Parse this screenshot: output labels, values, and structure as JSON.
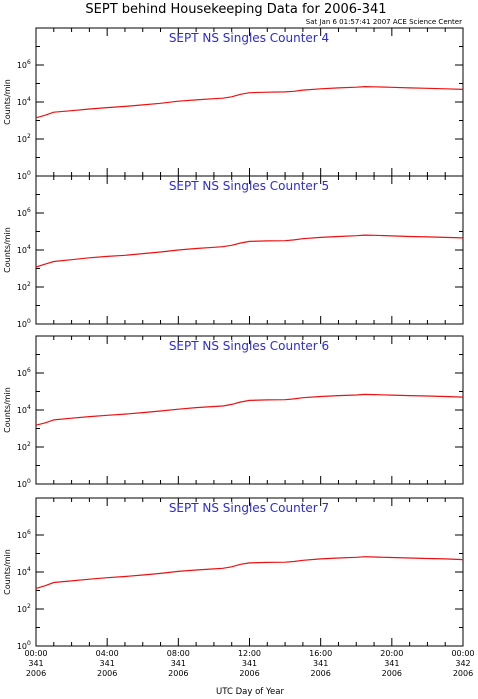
{
  "figure": {
    "title": "SEPT behind Housekeeping Data for 2006-341",
    "timestamp": "Sat Jan  6 01:57:41 2007 ACE Science Center",
    "xlabel": "UTC Day of Year",
    "colors": {
      "line": "#ee1111",
      "panel_title": "#2a2adf",
      "frame": "#000000"
    }
  },
  "chart_data": [
    {
      "type": "line",
      "title": "SEPT NS Singles Counter 4",
      "ylabel": "Counts/min",
      "yscale": "log",
      "ylim": [
        1,
        100000000
      ],
      "y_ticks": [
        {
          "base": "10",
          "exp": "0"
        },
        {
          "base": "10",
          "exp": "2"
        },
        {
          "base": "10",
          "exp": "4"
        },
        {
          "base": "10",
          "exp": "6"
        }
      ],
      "xlim": [
        0,
        24
      ],
      "x_ticks": [
        [
          "00:00",
          "341",
          "2006"
        ],
        [
          "04:00",
          "341",
          "2006"
        ],
        [
          "08:00",
          "341",
          "2006"
        ],
        [
          "12:00",
          "341",
          "2006"
        ],
        [
          "16:00",
          "341",
          "2006"
        ],
        [
          "20:00",
          "341",
          "2006"
        ],
        [
          "00:00",
          "342",
          "2006"
        ]
      ],
      "series": [
        {
          "x": [
            0,
            0.5,
            1,
            2,
            3,
            4,
            5,
            6,
            7,
            8,
            9,
            10,
            10.5,
            11,
            11.5,
            12,
            13,
            14,
            14.5,
            15,
            16,
            17,
            18,
            18.5,
            19,
            20,
            21,
            22,
            23,
            24
          ],
          "y": [
            1400,
            1900,
            2800,
            3400,
            4200,
            5000,
            5800,
            7000,
            8500,
            11000,
            13000,
            15000,
            16000,
            19000,
            26000,
            32000,
            34000,
            35000,
            38000,
            44000,
            52000,
            58000,
            63000,
            68000,
            66000,
            62000,
            58000,
            55000,
            52000,
            48000
          ]
        }
      ]
    },
    {
      "type": "line",
      "title": "SEPT NS Singles Counter 5",
      "ylabel": "Counts/min",
      "yscale": "log",
      "ylim": [
        1,
        100000000
      ],
      "y_ticks": [
        {
          "base": "10",
          "exp": "0"
        },
        {
          "base": "10",
          "exp": "2"
        },
        {
          "base": "10",
          "exp": "4"
        },
        {
          "base": "10",
          "exp": "6"
        }
      ],
      "xlim": [
        0,
        24
      ],
      "x_ticks": [
        [
          "00:00",
          "341",
          "2006"
        ],
        [
          "04:00",
          "341",
          "2006"
        ],
        [
          "08:00",
          "341",
          "2006"
        ],
        [
          "12:00",
          "341",
          "2006"
        ],
        [
          "16:00",
          "341",
          "2006"
        ],
        [
          "20:00",
          "341",
          "2006"
        ],
        [
          "00:00",
          "342",
          "2006"
        ]
      ],
      "series": [
        {
          "x": [
            0,
            0.5,
            1,
            2,
            3,
            4,
            5,
            6,
            7,
            8,
            9,
            10,
            10.5,
            11,
            11.5,
            12,
            13,
            14,
            14.5,
            15,
            16,
            17,
            18,
            18.5,
            19,
            20,
            21,
            22,
            23,
            24
          ],
          "y": [
            1200,
            1700,
            2400,
            3000,
            3800,
            4500,
            5200,
            6400,
            7800,
            10000,
            12000,
            14000,
            15000,
            18000,
            24000,
            29000,
            31000,
            32000,
            35000,
            41000,
            48000,
            54000,
            59000,
            64000,
            62000,
            58000,
            54000,
            51000,
            48000,
            45000
          ]
        }
      ]
    },
    {
      "type": "line",
      "title": "SEPT NS Singles Counter 6",
      "ylabel": "Counts/min",
      "yscale": "log",
      "ylim": [
        1,
        100000000
      ],
      "y_ticks": [
        {
          "base": "10",
          "exp": "0"
        },
        {
          "base": "10",
          "exp": "2"
        },
        {
          "base": "10",
          "exp": "4"
        },
        {
          "base": "10",
          "exp": "6"
        }
      ],
      "xlim": [
        0,
        24
      ],
      "x_ticks": [
        [
          "00:00",
          "341",
          "2006"
        ],
        [
          "04:00",
          "341",
          "2006"
        ],
        [
          "08:00",
          "341",
          "2006"
        ],
        [
          "12:00",
          "341",
          "2006"
        ],
        [
          "16:00",
          "341",
          "2006"
        ],
        [
          "20:00",
          "341",
          "2006"
        ],
        [
          "00:00",
          "342",
          "2006"
        ]
      ],
      "series": [
        {
          "x": [
            0,
            0.5,
            1,
            2,
            3,
            4,
            5,
            6,
            7,
            8,
            9,
            10,
            10.5,
            11,
            11.5,
            12,
            13,
            14,
            14.5,
            15,
            16,
            17,
            18,
            18.5,
            19,
            20,
            21,
            22,
            23,
            24
          ],
          "y": [
            1500,
            2000,
            2900,
            3600,
            4400,
            5200,
            6000,
            7200,
            8800,
            11000,
            13500,
            15500,
            16500,
            20000,
            27000,
            33000,
            35000,
            36000,
            40000,
            46000,
            54000,
            60000,
            65000,
            70000,
            68000,
            64000,
            60000,
            57000,
            54000,
            50000
          ]
        }
      ]
    },
    {
      "type": "line",
      "title": "SEPT NS Singles Counter 7",
      "ylabel": "Counts/min",
      "yscale": "log",
      "ylim": [
        1,
        100000000
      ],
      "y_ticks": [
        {
          "base": "10",
          "exp": "0"
        },
        {
          "base": "10",
          "exp": "2"
        },
        {
          "base": "10",
          "exp": "4"
        },
        {
          "base": "10",
          "exp": "6"
        }
      ],
      "xlim": [
        0,
        24
      ],
      "x_ticks": [
        [
          "00:00",
          "341",
          "2006"
        ],
        [
          "04:00",
          "341",
          "2006"
        ],
        [
          "08:00",
          "341",
          "2006"
        ],
        [
          "12:00",
          "341",
          "2006"
        ],
        [
          "16:00",
          "341",
          "2006"
        ],
        [
          "20:00",
          "341",
          "2006"
        ],
        [
          "00:00",
          "342",
          "2006"
        ]
      ],
      "series": [
        {
          "x": [
            0,
            0.5,
            1,
            2,
            3,
            4,
            5,
            6,
            7,
            8,
            9,
            10,
            10.5,
            11,
            11.5,
            12,
            13,
            14,
            14.5,
            15,
            16,
            17,
            18,
            18.5,
            19,
            20,
            21,
            22,
            23,
            24
          ],
          "y": [
            1300,
            1800,
            2700,
            3300,
            4100,
            4900,
            5700,
            6900,
            8400,
            10800,
            12800,
            14800,
            15800,
            19000,
            26000,
            31000,
            33000,
            34000,
            37000,
            43000,
            51000,
            57000,
            62000,
            67000,
            65000,
            61000,
            57000,
            54000,
            51000,
            47000
          ]
        }
      ]
    }
  ]
}
